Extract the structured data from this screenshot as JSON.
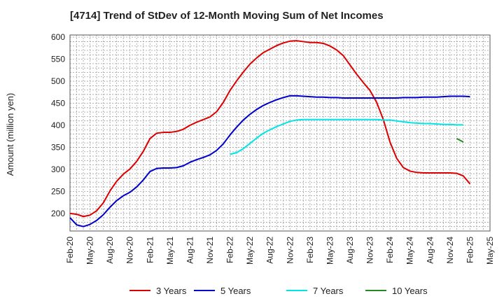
{
  "chart_data": {
    "type": "line",
    "title": "[4714]  Trend of StDev of 12-Month Moving Sum of Net Incomes",
    "ylabel": "Amount (million yen)",
    "xlabel": "",
    "ylim": [
      160,
      605
    ],
    "yticks": [
      200,
      250,
      300,
      350,
      400,
      450,
      500,
      550,
      600
    ],
    "xticks": [
      "Feb-20",
      "May-20",
      "Aug-20",
      "Nov-20",
      "Feb-21",
      "May-21",
      "Aug-21",
      "Nov-21",
      "Feb-22",
      "May-22",
      "Aug-22",
      "Nov-22",
      "Feb-23",
      "May-23",
      "Aug-23",
      "Nov-23",
      "Feb-24",
      "May-24",
      "Aug-24",
      "Nov-24",
      "Feb-25",
      "May-25"
    ],
    "grid": true,
    "legend_position": "bottom",
    "series": [
      {
        "name": "3 Years",
        "color": "#dd0000",
        "start_month": 0,
        "values": [
          200,
          198,
          193,
          196,
          206,
          224,
          251,
          273,
          289,
          301,
          318,
          341,
          370,
          382,
          384,
          384,
          386,
          391,
          400,
          407,
          413,
          419,
          431,
          452,
          479,
          501,
          521,
          539,
          553,
          565,
          573,
          581,
          587,
          591,
          592,
          590,
          588,
          588,
          586,
          580,
          571,
          558,
          537,
          516,
          497,
          479,
          452,
          413,
          362,
          325,
          304,
          296,
          293,
          292,
          292,
          292,
          292,
          292,
          291,
          285,
          267
        ]
      },
      {
        "name": "5 Years",
        "color": "#0000cc",
        "start_month": 0,
        "values": [
          190,
          174,
          170,
          175,
          184,
          197,
          214,
          229,
          240,
          248,
          260,
          276,
          295,
          302,
          303,
          303,
          304,
          308,
          316,
          322,
          327,
          333,
          343,
          358,
          378,
          396,
          412,
          425,
          436,
          445,
          452,
          458,
          463,
          467,
          467,
          466,
          465,
          464,
          464,
          463,
          463,
          462,
          462,
          462,
          462,
          462,
          462,
          462,
          462,
          462,
          463,
          463,
          463,
          464,
          464,
          464,
          465,
          466,
          466,
          466,
          465
        ]
      },
      {
        "name": "7 Years",
        "color": "#00e5e5",
        "start_month": 24,
        "values": [
          334,
          338,
          347,
          359,
          371,
          382,
          390,
          397,
          403,
          409,
          412,
          413,
          413,
          413,
          413,
          413,
          413,
          413,
          413,
          413,
          413,
          413,
          413,
          412,
          412,
          410,
          408,
          406,
          405,
          404,
          404,
          403,
          402,
          402,
          401,
          401
        ]
      },
      {
        "name": "10 Years",
        "color": "#228b22",
        "start_month": 58,
        "values": [
          370,
          362
        ]
      }
    ]
  }
}
